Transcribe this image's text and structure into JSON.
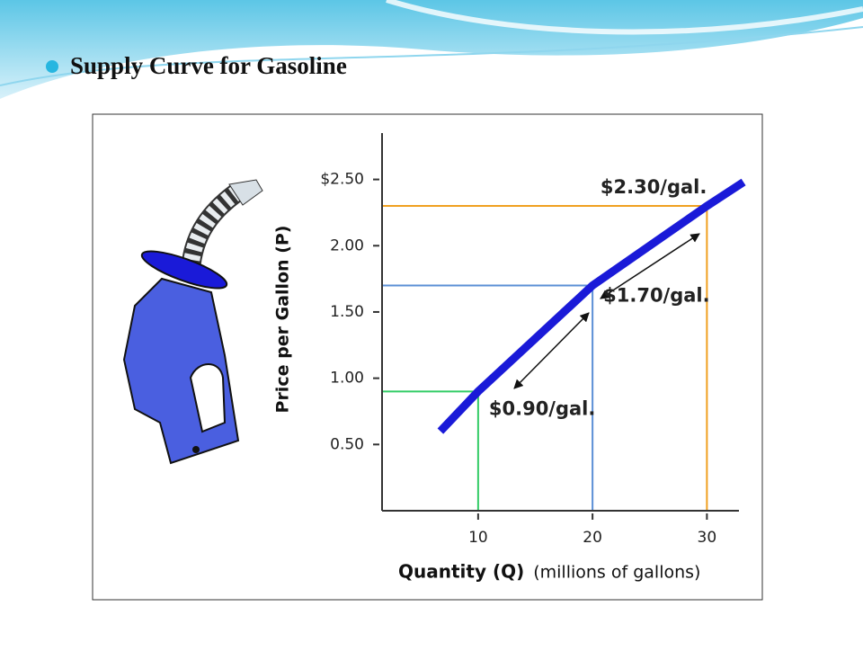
{
  "slide_title": "Supply Curve for Gasoline",
  "chart_data": {
    "type": "line",
    "x_label": "Quantity (Q)",
    "x_label_note": "(millions of gallons)",
    "y_label": "Price per Gallon (P)",
    "x": [
      6.7,
      10,
      20,
      30,
      33.2
    ],
    "series": [
      {
        "color": "#1a1ad8",
        "values": [
          0.6,
          0.9,
          1.7,
          2.3,
          2.48
        ]
      }
    ],
    "xlim": [
      1.6,
      32.8
    ],
    "xticks": [
      10,
      20,
      30
    ],
    "ylim": [
      0,
      2.85
    ],
    "yticks": [
      {
        "value": 0.5,
        "label": "0.50"
      },
      {
        "value": 1,
        "label": "1.00"
      },
      {
        "value": 1.5,
        "label": "1.50"
      },
      {
        "value": 2,
        "label": "2.00"
      },
      {
        "value": 2.5,
        "label": "$2.50"
      }
    ],
    "reference_points": [
      {
        "x": 10,
        "y": 0.9,
        "label": "$0.90/gal.",
        "color": "#33cc66"
      },
      {
        "x": 20,
        "y": 1.7,
        "label": "$1.70/gal.",
        "color": "#5b8fd6"
      },
      {
        "x": 30,
        "y": 2.3,
        "label": "$2.30/gal.",
        "color": "#f0a020"
      }
    ]
  }
}
